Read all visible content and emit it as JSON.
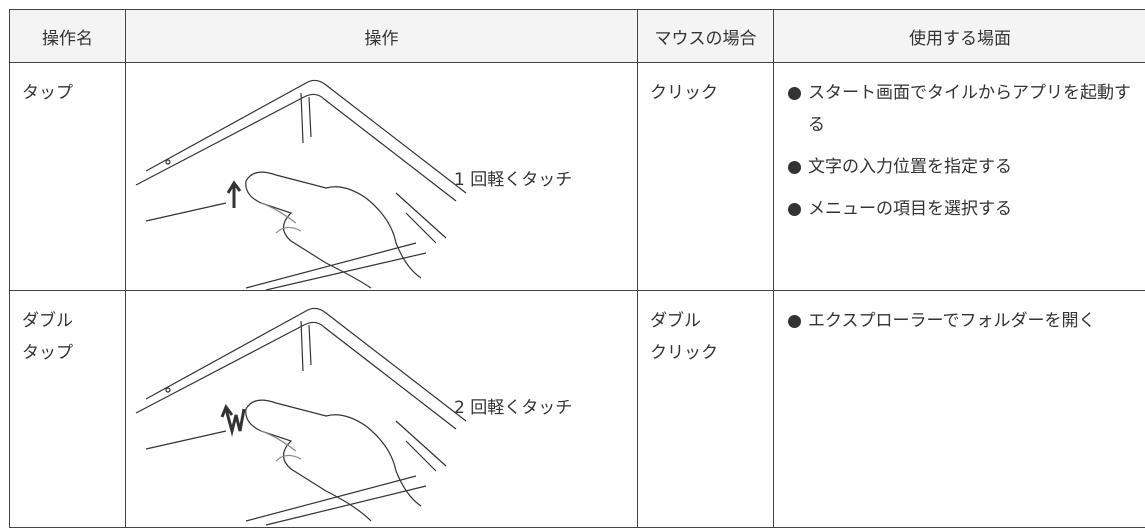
{
  "table": {
    "header": [
      "操作名",
      "操作",
      "マウスの場合",
      "使用する場面"
    ],
    "rows": [
      {
        "name": [
          "タップ"
        ],
        "action": "1 回軽くタッチ",
        "mouse": [
          "クリック"
        ],
        "uses": [
          "スタート画面でタイルからアプリを起動する",
          "文字の入力位置を指定する",
          "メニューの項目を選択する"
        ]
      },
      {
        "name": [
          "ダブル",
          "タップ"
        ],
        "action": "2 回軽くタッチ",
        "mouse": [
          "ダブル",
          "クリック"
        ],
        "uses": [
          "エクスプローラーでフォルダーを開く"
        ]
      }
    ]
  }
}
